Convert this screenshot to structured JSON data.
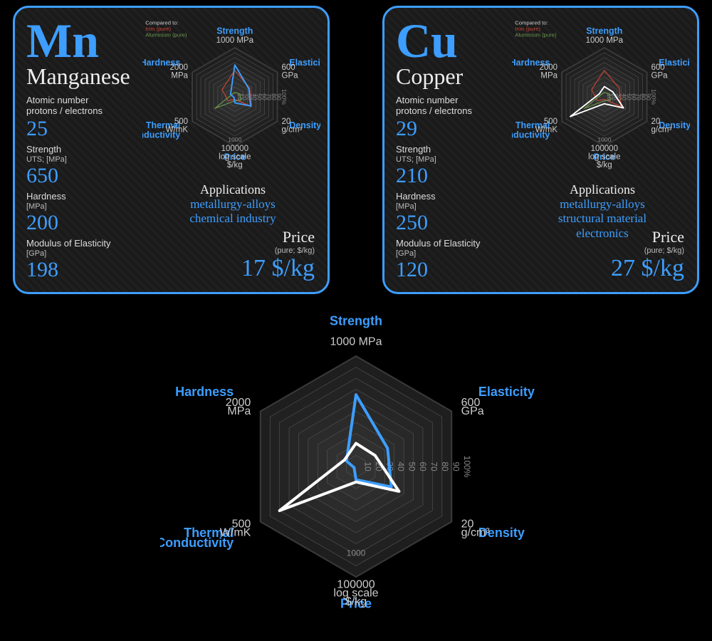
{
  "colors": {
    "accent": "#3d9eff",
    "card_border": "#3d9eff",
    "card_bg": "#1a1a1a",
    "text": "#eeeeee",
    "muted": "#bbbbbb",
    "radar_hex_fill": "#2b2b2b",
    "radar_hex_stroke": "#555555",
    "radar_scale": "#888888",
    "series_mn": "#3d9eff",
    "series_cu": "#ffffff",
    "ref_iron": "#cc4433",
    "ref_aluminium": "#6a994e"
  },
  "elements": [
    {
      "symbol": "Mn",
      "name": "Manganese",
      "atomic_number": 25,
      "strength_mpa": 650,
      "hardness_mpa": 200,
      "modulus_gpa": 198,
      "applications": [
        "metallurgy-alloys",
        "chemical industry"
      ],
      "price_per_kg": 17,
      "price_unit": "$/kg",
      "series_color": "#3d9eff",
      "radar_pct": {
        "strength": 65,
        "elasticity": 33,
        "density": 37,
        "price": 12,
        "thermal": 2,
        "hardness": 10
      }
    },
    {
      "symbol": "Cu",
      "name": "Copper",
      "atomic_number": 29,
      "strength_mpa": 210,
      "hardness_mpa": 250,
      "modulus_gpa": 120,
      "applications": [
        "metallurgy-alloys",
        "structural material",
        "electronics"
      ],
      "price_per_kg": 27,
      "price_unit": "$/kg",
      "series_color": "#ffffff",
      "radar_pct": {
        "strength": 21,
        "elasticity": 20,
        "density": 45,
        "price": 14,
        "thermal": 80,
        "hardness": 12
      }
    }
  ],
  "reference_series": {
    "iron": {
      "color": "#cc4433",
      "label": "Iron (pure)",
      "radar_pct": {
        "strength": 54,
        "elasticity": 35,
        "density": 39,
        "price": 5,
        "thermal": 16,
        "hardness": 30
      }
    },
    "aluminium": {
      "color": "#6a994e",
      "label": "Aluminium (pure)",
      "radar_pct": {
        "strength": 9,
        "elasticity": 12,
        "density": 14,
        "price": 8,
        "thermal": 47,
        "hardness": 8
      }
    }
  },
  "radar": {
    "type": "radar-hexagon",
    "axes": [
      {
        "key": "strength",
        "label": "Strength",
        "unit": "1000 MPa",
        "angle_deg": 90
      },
      {
        "key": "elasticity",
        "label": "Elasticity",
        "unit": "600\nGPa",
        "angle_deg": 30
      },
      {
        "key": "density",
        "label": "Density",
        "unit": "20\ng/cm³",
        "angle_deg": -30
      },
      {
        "key": "price",
        "label": "Price",
        "unit": "100000\nlog scale\n$/kg",
        "angle_deg": -90
      },
      {
        "key": "thermal",
        "label": "Thermal\nConductivity",
        "unit": "500\nW/mK",
        "angle_deg": -150
      },
      {
        "key": "hardness",
        "label": "Hardness",
        "unit": "2000\nMPa",
        "angle_deg": 150
      }
    ],
    "rings_pct": [
      10,
      20,
      30,
      40,
      50,
      60,
      70,
      80,
      90,
      100
    ],
    "scale_labels": [
      "10",
      "20",
      "30",
      "40",
      "50",
      "60",
      "70",
      "80",
      "90",
      "100%"
    ],
    "mini_legend": {
      "title": "Compared to:",
      "items": [
        "Iron (pure)",
        "Aluminium (pure)"
      ]
    }
  },
  "labels": {
    "atomic": "Atomic number\nprotons / electrons",
    "strength": "Strength",
    "strength_sub": "UTS; [MPa]",
    "hardness": "Hardness",
    "hardness_sub": "[MPa]",
    "modulus": "Modulus of Elasticity",
    "modulus_sub": "[GPa]",
    "applications": "Applications",
    "price": "Price",
    "price_sub": "(pure; $/kg)"
  },
  "big_chart": {
    "series_keys": [
      "Mn",
      "Cu"
    ],
    "stroke_width": 4,
    "background": "#000000"
  }
}
